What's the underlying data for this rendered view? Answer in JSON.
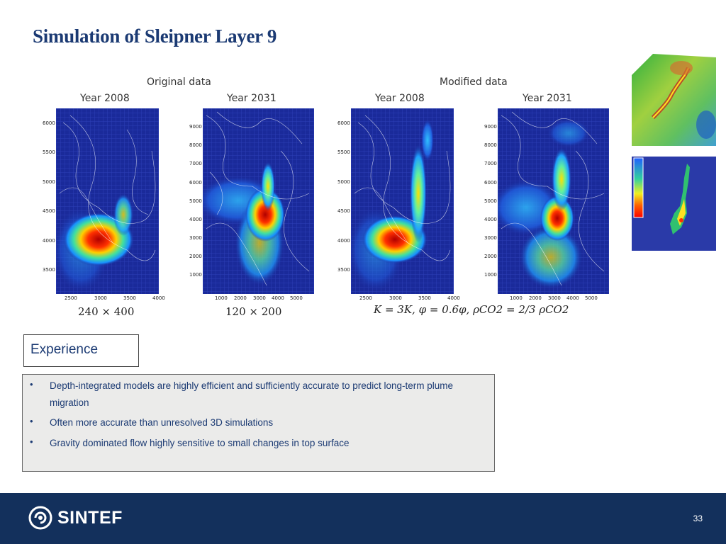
{
  "slide": {
    "title": "Simulation of Sleipner Layer 9",
    "page_number": "33"
  },
  "figure": {
    "original_label": "Original data",
    "modified_label": "Modified data",
    "panels": [
      {
        "year": "Year 2008",
        "y_ticks": [
          "6000",
          "5500",
          "5000",
          "4500",
          "4000",
          "3500"
        ],
        "x_ticks": [
          "2500",
          "3000",
          "3500",
          "4000"
        ]
      },
      {
        "year": "Year 2031",
        "y_ticks": [
          "9000",
          "8000",
          "7000",
          "6000",
          "5000",
          "4000",
          "3000",
          "2000",
          "1000"
        ],
        "x_ticks": [
          "1000",
          "2000",
          "3000",
          "4000",
          "5000"
        ]
      },
      {
        "year": "Year 2008",
        "y_ticks": [
          "6000",
          "5500",
          "5000",
          "4500",
          "4000",
          "3500"
        ],
        "x_ticks": [
          "2500",
          "3000",
          "3500",
          "4000"
        ]
      },
      {
        "year": "Year 2031",
        "y_ticks": [
          "9000",
          "8000",
          "7000",
          "6000",
          "5000",
          "4000",
          "3000",
          "2000",
          "1000"
        ],
        "x_ticks": [
          "1000",
          "2000",
          "3000",
          "4000",
          "5000"
        ]
      }
    ],
    "grid_fine": "240 × 400",
    "grid_coarse": "120 × 200",
    "formula": "K = 3K, φ = 0.6φ, ρCO2 = 2/3 ρCO2"
  },
  "experience": {
    "heading": "Experience",
    "bullets": [
      "Depth-integrated models are highly efficient and sufficiently accurate to predict long-term plume migration",
      "Often more accurate than unresolved 3D simulations",
      "Gravity dominated flow highly sensitive to small changes in top surface"
    ]
  },
  "brand": {
    "name": "SINTEF",
    "footer_color": "#13305c",
    "title_color": "#1b3a73"
  }
}
